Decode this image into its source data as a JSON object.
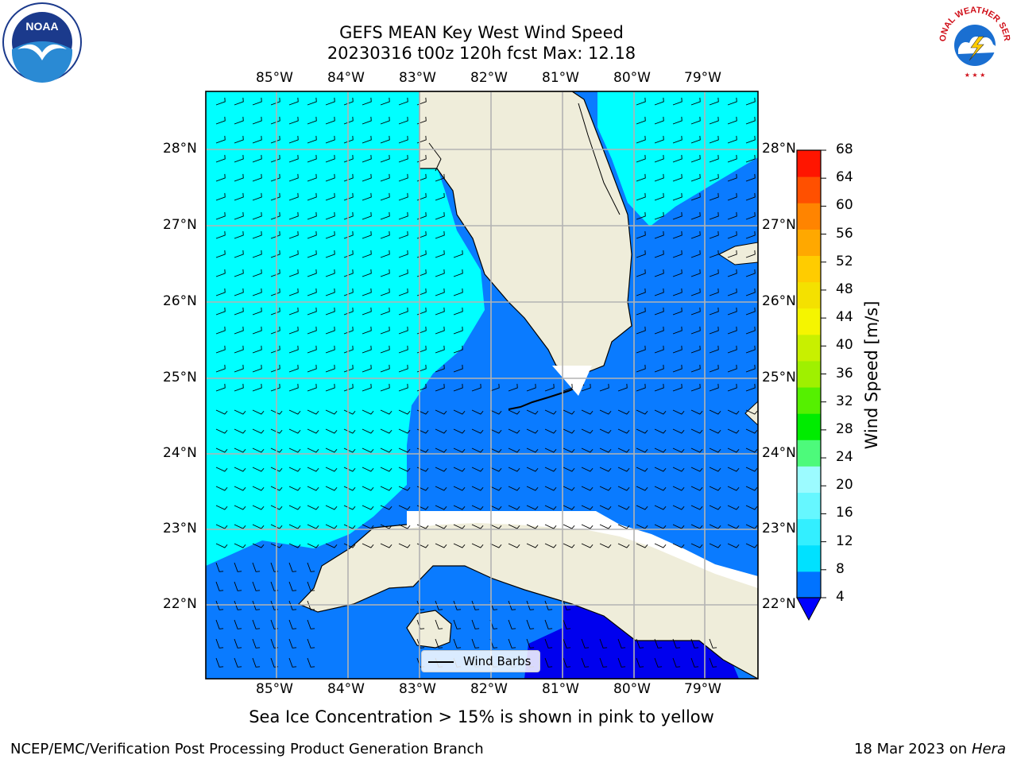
{
  "header": {
    "title_line1": "GEFS MEAN Key West Wind Speed",
    "title_line2": "20230316 t00z 120h fcst   Max: 12.18"
  },
  "axes": {
    "lon_labels": [
      "85°W",
      "84°W",
      "83°W",
      "82°W",
      "81°W",
      "80°W",
      "79°W"
    ],
    "lat_labels": [
      "28°N",
      "27°N",
      "26°N",
      "25°N",
      "24°N",
      "23°N",
      "22°N"
    ]
  },
  "colorbar": {
    "label": "Wind Speed [m/s]",
    "ticks": [
      "4",
      "8",
      "12",
      "16",
      "20",
      "24",
      "28",
      "32",
      "36",
      "40",
      "44",
      "48",
      "52",
      "56",
      "60",
      "64",
      "68"
    ],
    "colors": [
      "#0073ff",
      "#00e1ff",
      "#33efff",
      "#66f7ff",
      "#9cfbff",
      "#4dfa7b",
      "#00ec00",
      "#55f000",
      "#9ff000",
      "#c8f000",
      "#f5f500",
      "#f4e100",
      "#ffcc00",
      "#ffa800",
      "#ff8400",
      "#ff5000",
      "#ff1500"
    ],
    "under_color": "#0000ff"
  },
  "map": {
    "field_colors": {
      "light": "#00ffff",
      "medium": "#0a7bff",
      "dark": "#0000ee"
    },
    "land_color": "#efedda"
  },
  "legend": {
    "label": "Wind Barbs"
  },
  "note": "Sea Ice Concentration > 15% is shown in pink to yellow",
  "footer": {
    "left": "NCEP/EMC/Verification Post Processing Product Generation Branch",
    "right_date": "18 Mar 2023 on",
    "right_host": "Hera"
  },
  "logos": {
    "noaa_text": "NOAA",
    "nws_text": "NATIONAL WEATHER SERVICE"
  }
}
